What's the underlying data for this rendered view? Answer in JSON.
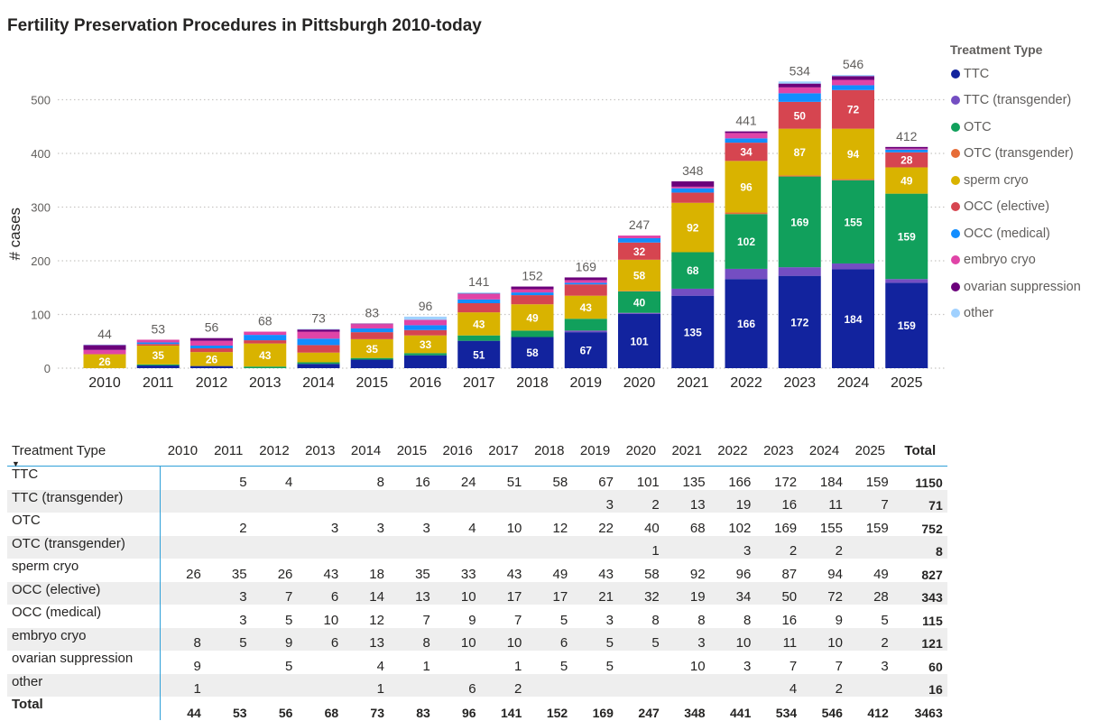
{
  "title": "Fertility Preservation Procedures in Pittsburgh 2010-today",
  "colors": {
    "TTC": "#12239e",
    "TTC (transgender)": "#744ec2",
    "OTC": "#11a05c",
    "OTC (transgender)": "#e66c37",
    "sperm cryo": "#d9b300",
    "OCC (elective)": "#d64550",
    "OCC (medical)": "#118dff",
    "embryo cryo": "#e044a7",
    "ovarian suppression": "#6b007b",
    "other": "#a0d1ff"
  },
  "chart_data": {
    "type": "bar",
    "stacked": true,
    "ylabel": "# cases",
    "xlabel": "",
    "ylim": [
      0,
      550
    ],
    "yticks": [
      0,
      100,
      200,
      300,
      400,
      500
    ],
    "grid": true,
    "legend_title": "Treatment Type",
    "legend_position": "right",
    "categories": [
      "2010",
      "2011",
      "2012",
      "2013",
      "2014",
      "2015",
      "2016",
      "2017",
      "2018",
      "2019",
      "2020",
      "2021",
      "2022",
      "2023",
      "2024",
      "2025"
    ],
    "series": [
      {
        "name": "TTC",
        "values": [
          0,
          5,
          4,
          0,
          8,
          16,
          24,
          51,
          58,
          67,
          101,
          135,
          166,
          172,
          184,
          159
        ]
      },
      {
        "name": "TTC (transgender)",
        "values": [
          0,
          0,
          0,
          0,
          0,
          0,
          0,
          0,
          0,
          3,
          2,
          13,
          19,
          16,
          11,
          7
        ]
      },
      {
        "name": "OTC",
        "values": [
          0,
          2,
          0,
          3,
          3,
          3,
          4,
          10,
          12,
          22,
          40,
          68,
          102,
          169,
          155,
          159
        ]
      },
      {
        "name": "OTC (transgender)",
        "values": [
          0,
          0,
          0,
          0,
          0,
          0,
          0,
          0,
          0,
          0,
          1,
          0,
          3,
          2,
          2,
          0
        ]
      },
      {
        "name": "sperm cryo",
        "values": [
          26,
          35,
          26,
          43,
          18,
          35,
          33,
          43,
          49,
          43,
          58,
          92,
          96,
          87,
          94,
          49
        ]
      },
      {
        "name": "OCC (elective)",
        "values": [
          0,
          3,
          7,
          6,
          14,
          13,
          10,
          17,
          17,
          21,
          32,
          19,
          34,
          50,
          72,
          28
        ]
      },
      {
        "name": "OCC (medical)",
        "values": [
          0,
          3,
          5,
          10,
          12,
          7,
          9,
          7,
          5,
          3,
          8,
          8,
          8,
          16,
          9,
          5
        ]
      },
      {
        "name": "embryo cryo",
        "values": [
          8,
          5,
          9,
          6,
          13,
          8,
          10,
          10,
          6,
          5,
          5,
          3,
          10,
          11,
          10,
          2
        ]
      },
      {
        "name": "ovarian suppression",
        "values": [
          9,
          0,
          5,
          0,
          4,
          1,
          0,
          1,
          5,
          5,
          0,
          10,
          3,
          7,
          7,
          3
        ]
      },
      {
        "name": "other",
        "values": [
          1,
          0,
          0,
          0,
          1,
          0,
          6,
          2,
          0,
          0,
          0,
          0,
          0,
          4,
          2,
          0
        ]
      }
    ],
    "totals": [
      44,
      53,
      56,
      68,
      73,
      83,
      96,
      141,
      152,
      169,
      247,
      348,
      441,
      534,
      546,
      412
    ]
  },
  "table": {
    "row_header": "Treatment Type",
    "columns": [
      "2010",
      "2011",
      "2012",
      "2013",
      "2014",
      "2015",
      "2016",
      "2017",
      "2018",
      "2019",
      "2020",
      "2021",
      "2022",
      "2023",
      "2024",
      "2025"
    ],
    "total_label": "Total",
    "rows": [
      {
        "label": "TTC",
        "cells": [
          "",
          "5",
          "4",
          "",
          "8",
          "16",
          "24",
          "51",
          "58",
          "67",
          "101",
          "135",
          "166",
          "172",
          "184",
          "159"
        ],
        "total": "1150"
      },
      {
        "label": "TTC (transgender)",
        "cells": [
          "",
          "",
          "",
          "",
          "",
          "",
          "",
          "",
          "",
          "3",
          "2",
          "13",
          "19",
          "16",
          "11",
          "7"
        ],
        "total": "71"
      },
      {
        "label": "OTC",
        "cells": [
          "",
          "2",
          "",
          "3",
          "3",
          "3",
          "4",
          "10",
          "12",
          "22",
          "40",
          "68",
          "102",
          "169",
          "155",
          "159"
        ],
        "total": "752"
      },
      {
        "label": "OTC (transgender)",
        "cells": [
          "",
          "",
          "",
          "",
          "",
          "",
          "",
          "",
          "",
          "",
          "1",
          "",
          "3",
          "2",
          "2",
          ""
        ],
        "total": "8"
      },
      {
        "label": "sperm cryo",
        "cells": [
          "26",
          "35",
          "26",
          "43",
          "18",
          "35",
          "33",
          "43",
          "49",
          "43",
          "58",
          "92",
          "96",
          "87",
          "94",
          "49"
        ],
        "total": "827"
      },
      {
        "label": "OCC (elective)",
        "cells": [
          "",
          "3",
          "7",
          "6",
          "14",
          "13",
          "10",
          "17",
          "17",
          "21",
          "32",
          "19",
          "34",
          "50",
          "72",
          "28"
        ],
        "total": "343"
      },
      {
        "label": "OCC (medical)",
        "cells": [
          "",
          "3",
          "5",
          "10",
          "12",
          "7",
          "9",
          "7",
          "5",
          "3",
          "8",
          "8",
          "8",
          "16",
          "9",
          "5"
        ],
        "total": "115"
      },
      {
        "label": "embryo cryo",
        "cells": [
          "8",
          "5",
          "9",
          "6",
          "13",
          "8",
          "10",
          "10",
          "6",
          "5",
          "5",
          "3",
          "10",
          "11",
          "10",
          "2"
        ],
        "total": "121"
      },
      {
        "label": "ovarian suppression",
        "cells": [
          "9",
          "",
          "5",
          "",
          "4",
          "1",
          "",
          "1",
          "5",
          "5",
          "",
          "10",
          "3",
          "7",
          "7",
          "3"
        ],
        "total": "60"
      },
      {
        "label": "other",
        "cells": [
          "1",
          "",
          "",
          "",
          "1",
          "",
          "6",
          "2",
          "",
          "",
          "",
          "",
          "",
          "4",
          "2",
          ""
        ],
        "total": "16"
      }
    ],
    "totals": {
      "label": "Total",
      "cells": [
        "44",
        "53",
        "56",
        "68",
        "73",
        "83",
        "96",
        "141",
        "152",
        "169",
        "247",
        "348",
        "441",
        "534",
        "546",
        "412"
      ],
      "total": "3463"
    }
  }
}
